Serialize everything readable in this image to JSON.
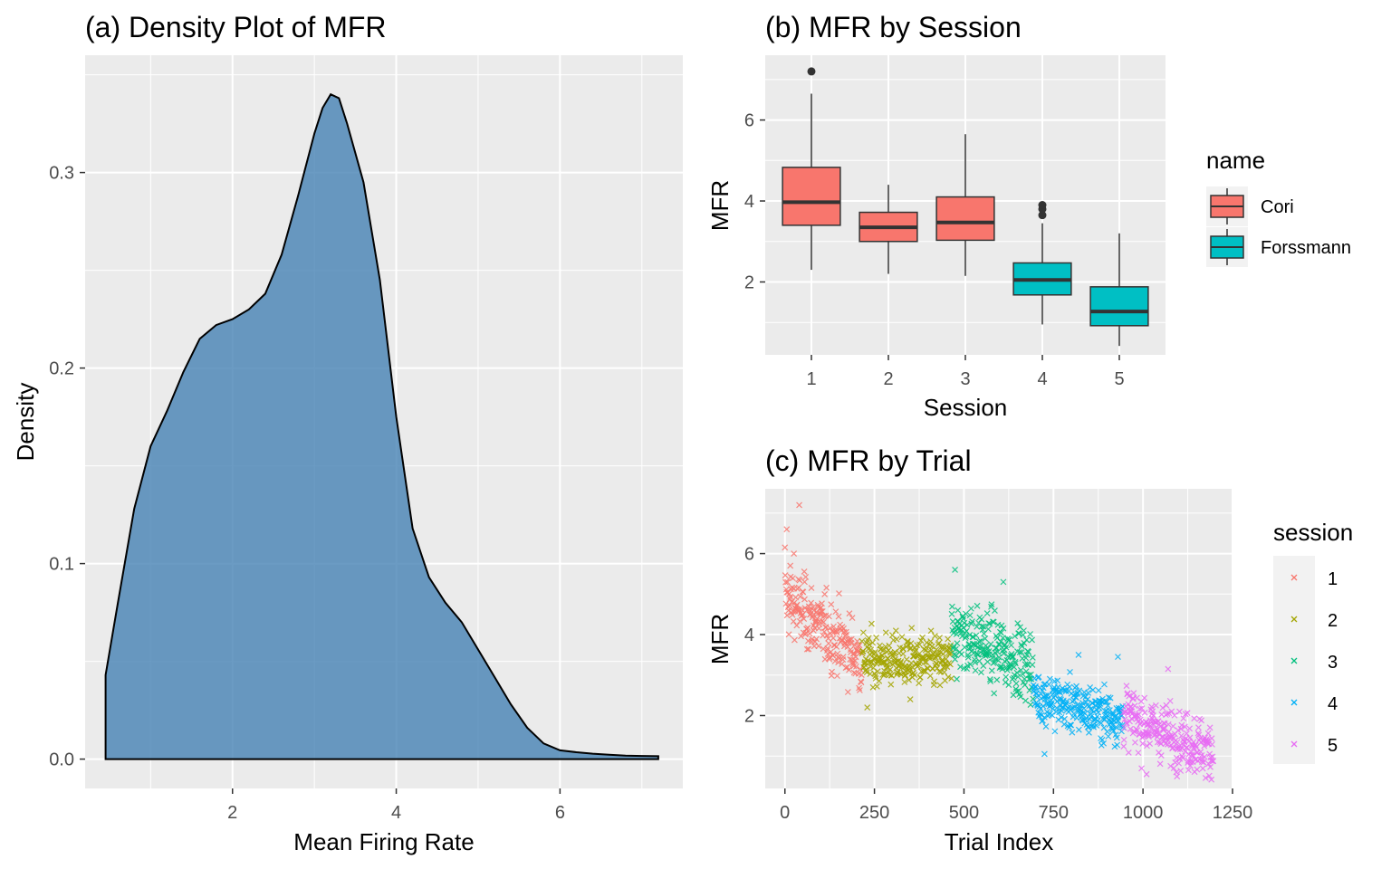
{
  "chart_data": [
    {
      "type": "area",
      "title": "(a) Density Plot of MFR",
      "xlabel": "Mean Firing Rate",
      "ylabel": "Density",
      "xlim": [
        0.2,
        7.5
      ],
      "ylim": [
        -0.015,
        0.36
      ],
      "xticks": [
        2,
        4,
        6
      ],
      "yticks": [
        0.0,
        0.1,
        0.2,
        0.3
      ],
      "ytick_labels": [
        "0.0",
        "0.1",
        "0.2",
        "0.3"
      ],
      "grid": true,
      "fill_color": "#4682B4",
      "x": [
        0.45,
        0.6,
        0.8,
        1.0,
        1.2,
        1.4,
        1.6,
        1.8,
        2.0,
        2.2,
        2.4,
        2.6,
        2.8,
        3.0,
        3.1,
        3.2,
        3.3,
        3.4,
        3.6,
        3.8,
        4.0,
        4.2,
        4.4,
        4.6,
        4.8,
        5.0,
        5.2,
        5.4,
        5.6,
        5.8,
        6.0,
        6.2,
        6.4,
        6.6,
        6.8,
        7.0,
        7.2
      ],
      "y": [
        0.043,
        0.08,
        0.128,
        0.16,
        0.178,
        0.198,
        0.215,
        0.222,
        0.225,
        0.23,
        0.238,
        0.258,
        0.288,
        0.32,
        0.333,
        0.34,
        0.338,
        0.325,
        0.295,
        0.245,
        0.175,
        0.118,
        0.093,
        0.08,
        0.07,
        0.056,
        0.042,
        0.028,
        0.016,
        0.008,
        0.0045,
        0.0035,
        0.0028,
        0.0022,
        0.0018,
        0.0016,
        0.0015
      ]
    },
    {
      "type": "box",
      "title": "(b) MFR by Session",
      "xlabel": "Session",
      "ylabel": "MFR",
      "categories": [
        "1",
        "2",
        "3",
        "4",
        "5"
      ],
      "ylim": [
        0.2,
        7.6
      ],
      "yticks": [
        2,
        4,
        6
      ],
      "grid": true,
      "legend": {
        "title": "name",
        "position": "right",
        "entries": [
          {
            "label": "Cori",
            "color": "#F8766D"
          },
          {
            "label": "Forssmann",
            "color": "#00BFC4"
          }
        ]
      },
      "boxes": [
        {
          "session": "1",
          "name": "Cori",
          "whisker_low": 2.3,
          "q1": 3.4,
          "median": 3.97,
          "q3": 4.83,
          "whisker_high": 6.65,
          "outliers": [
            7.2
          ]
        },
        {
          "session": "2",
          "name": "Cori",
          "whisker_low": 2.2,
          "q1": 3.0,
          "median": 3.35,
          "q3": 3.72,
          "whisker_high": 4.4,
          "outliers": []
        },
        {
          "session": "3",
          "name": "Cori",
          "whisker_low": 2.15,
          "q1": 3.03,
          "median": 3.47,
          "q3": 4.1,
          "whisker_high": 5.65,
          "outliers": []
        },
        {
          "session": "4",
          "name": "Forssmann",
          "whisker_low": 0.95,
          "q1": 1.68,
          "median": 2.05,
          "q3": 2.47,
          "whisker_high": 3.45,
          "outliers": [
            3.65,
            3.8,
            3.9
          ]
        },
        {
          "session": "5",
          "name": "Forssmann",
          "whisker_low": 0.42,
          "q1": 0.92,
          "median": 1.27,
          "q3": 1.88,
          "whisker_high": 3.2,
          "outliers": []
        }
      ]
    },
    {
      "type": "scatter",
      "title": "(c) MFR by Trial",
      "xlabel": "Trial Index",
      "ylabel": "MFR",
      "xlim": [
        -55,
        1250
      ],
      "ylim": [
        0.2,
        7.6
      ],
      "xticks": [
        0,
        250,
        500,
        750,
        1000,
        1250
      ],
      "yticks": [
        2,
        4,
        6
      ],
      "marker": "x",
      "grid": true,
      "legend": {
        "title": "session",
        "position": "right",
        "entries": [
          {
            "label": "1",
            "color": "#F8766D"
          },
          {
            "label": "2",
            "color": "#A3A500"
          },
          {
            "label": "3",
            "color": "#00BF7D"
          },
          {
            "label": "4",
            "color": "#00B0F6"
          },
          {
            "label": "5",
            "color": "#E76BF3"
          }
        ]
      },
      "series": [
        {
          "name": "1",
          "color": "#F8766D",
          "x_range": [
            1,
            214
          ],
          "mfr_start": 4.9,
          "mfr_end": 3.4,
          "spread": 0.6,
          "points": [
            [
              40,
              7.2
            ],
            [
              5,
              6.6
            ],
            [
              0,
              6.15
            ],
            [
              25,
              6.0
            ],
            [
              55,
              5.3
            ],
            [
              15,
              5.7
            ],
            [
              80,
              4.1
            ]
          ]
        },
        {
          "name": "2",
          "color": "#A3A500",
          "x_range": [
            215,
            465
          ],
          "mfr_start": 3.4,
          "mfr_end": 3.3,
          "spread": 0.45,
          "points": [
            [
              230,
              2.2
            ],
            [
              350,
              2.4
            ]
          ]
        },
        {
          "name": "3",
          "color": "#00BF7D",
          "x_range": [
            466,
            693
          ],
          "mfr_start": 4.1,
          "mfr_end": 3.2,
          "spread": 0.6,
          "points": [
            [
              475,
              5.6
            ],
            [
              610,
              5.3
            ],
            [
              480,
              2.9
            ]
          ]
        },
        {
          "name": "4",
          "color": "#00B0F6",
          "x_range": [
            694,
            944
          ],
          "mfr_start": 2.5,
          "mfr_end": 1.9,
          "spread": 0.45,
          "points": [
            [
              820,
              3.5
            ],
            [
              930,
              3.45
            ],
            [
              725,
              1.05
            ]
          ]
        },
        {
          "name": "5",
          "color": "#E76BF3",
          "x_range": [
            945,
            1196
          ],
          "mfr_start": 2.0,
          "mfr_end": 1.1,
          "spread": 0.5,
          "points": [
            [
              1070,
              3.15
            ],
            [
              1010,
              0.55
            ]
          ]
        }
      ]
    }
  ]
}
